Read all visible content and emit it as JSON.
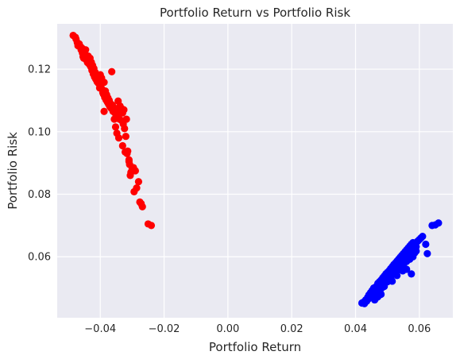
{
  "chart_data": {
    "type": "scatter",
    "title": "Portfolio Return vs Portfolio Risk",
    "xlabel": "Portfolio Return",
    "ylabel": "Portfolio Risk",
    "xlim": [
      -0.0535,
      0.0705
    ],
    "ylim": [
      0.0405,
      0.1345
    ],
    "xticks": [
      -0.04,
      -0.02,
      0.0,
      0.02,
      0.04,
      0.06
    ],
    "xtick_labels": [
      "−0.04",
      "−0.02",
      "0.00",
      "0.02",
      "0.04",
      "0.06"
    ],
    "yticks": [
      0.06,
      0.08,
      0.1,
      0.12
    ],
    "ytick_labels": [
      "0.06",
      "0.08",
      "0.10",
      "0.12"
    ],
    "grid": true,
    "background": "#eaeaf2",
    "grid_color": "#ffffff",
    "series": [
      {
        "color": "#ff0000",
        "points": [
          [
            -0.0485,
            0.1308
          ],
          [
            -0.0478,
            0.1302
          ],
          [
            -0.0476,
            0.1296
          ],
          [
            -0.0472,
            0.1285
          ],
          [
            -0.047,
            0.1275
          ],
          [
            -0.0466,
            0.1281
          ],
          [
            -0.0462,
            0.1272
          ],
          [
            -0.046,
            0.1262
          ],
          [
            -0.0458,
            0.1268
          ],
          [
            -0.0456,
            0.1252
          ],
          [
            -0.0454,
            0.124
          ],
          [
            -0.0452,
            0.1235
          ],
          [
            -0.045,
            0.1258
          ],
          [
            -0.0448,
            0.1245
          ],
          [
            -0.0446,
            0.1262
          ],
          [
            -0.0444,
            0.123
          ],
          [
            -0.0442,
            0.1238
          ],
          [
            -0.044,
            0.1221
          ],
          [
            -0.0438,
            0.1242
          ],
          [
            -0.0436,
            0.1228
          ],
          [
            -0.0434,
            0.1215
          ],
          [
            -0.0432,
            0.1235
          ],
          [
            -0.043,
            0.1208
          ],
          [
            -0.0428,
            0.1222
          ],
          [
            -0.0426,
            0.1196
          ],
          [
            -0.0424,
            0.1212
          ],
          [
            -0.0422,
            0.1185
          ],
          [
            -0.042,
            0.1202
          ],
          [
            -0.0418,
            0.1175
          ],
          [
            -0.0416,
            0.119
          ],
          [
            -0.0414,
            0.1168
          ],
          [
            -0.0412,
            0.1182
          ],
          [
            -0.041,
            0.116
          ],
          [
            -0.0408,
            0.1175
          ],
          [
            -0.0406,
            0.1155
          ],
          [
            -0.0404,
            0.116
          ],
          [
            -0.0402,
            0.114
          ],
          [
            -0.04,
            0.1182
          ],
          [
            -0.0398,
            0.1148
          ],
          [
            -0.0396,
            0.1172
          ],
          [
            -0.0394,
            0.1135
          ],
          [
            -0.0392,
            0.1125
          ],
          [
            -0.039,
            0.112
          ],
          [
            -0.0388,
            0.1158
          ],
          [
            -0.0386,
            0.111
          ],
          [
            -0.0384,
            0.113
          ],
          [
            -0.0382,
            0.1102
          ],
          [
            -0.038,
            0.1118
          ],
          [
            -0.0378,
            0.1095
          ],
          [
            -0.0376,
            0.1108
          ],
          [
            -0.0374,
            0.1088
          ],
          [
            -0.0372,
            0.11
          ],
          [
            -0.037,
            0.108
          ],
          [
            -0.0368,
            0.109
          ],
          [
            -0.0366,
            0.1075
          ],
          [
            -0.0364,
            0.1192
          ],
          [
            -0.0362,
            0.1085
          ],
          [
            -0.036,
            0.1065
          ],
          [
            -0.0358,
            0.1078
          ],
          [
            -0.0356,
            0.104
          ],
          [
            -0.0354,
            0.106
          ],
          [
            -0.0352,
            0.1015
          ],
          [
            -0.035,
            0.105
          ],
          [
            -0.0348,
            0.0995
          ],
          [
            -0.0346,
            0.107
          ],
          [
            -0.0344,
            0.1098
          ],
          [
            -0.0342,
            0.1055
          ],
          [
            -0.034,
            0.104
          ],
          [
            -0.0338,
            0.1082
          ],
          [
            -0.0336,
            0.1068
          ],
          [
            -0.0334,
            0.1075
          ],
          [
            -0.0332,
            0.1035
          ],
          [
            -0.033,
            0.106
          ],
          [
            -0.0328,
            0.1025
          ],
          [
            -0.0326,
            0.107
          ],
          [
            -0.0324,
            0.101
          ],
          [
            -0.0322,
            0.0935
          ],
          [
            -0.032,
            0.0985
          ],
          [
            -0.0318,
            0.104
          ],
          [
            -0.0316,
            0.093
          ],
          [
            -0.0314,
            0.0938
          ],
          [
            -0.031,
            0.0905
          ],
          [
            -0.0308,
            0.0895
          ],
          [
            -0.0306,
            0.086
          ],
          [
            -0.0304,
            0.087
          ],
          [
            -0.03,
            0.088
          ],
          [
            -0.0296,
            0.0885
          ],
          [
            -0.0294,
            0.0808
          ],
          [
            -0.029,
            0.0875
          ],
          [
            -0.0286,
            0.082
          ],
          [
            -0.028,
            0.084
          ],
          [
            -0.0276,
            0.0775
          ],
          [
            -0.0272,
            0.077
          ],
          [
            -0.0268,
            0.076
          ],
          [
            -0.025,
            0.0705
          ],
          [
            -0.024,
            0.07
          ],
          [
            -0.031,
            0.091
          ],
          [
            -0.0342,
            0.098
          ],
          [
            -0.033,
            0.0955
          ],
          [
            -0.0388,
            0.1065
          ]
        ]
      },
      {
        "color": "#0000ff",
        "points": [
          [
            0.042,
            0.0452
          ],
          [
            0.0425,
            0.0455
          ],
          [
            0.0428,
            0.045
          ],
          [
            0.0432,
            0.0462
          ],
          [
            0.0435,
            0.0458
          ],
          [
            0.0438,
            0.047
          ],
          [
            0.044,
            0.0465
          ],
          [
            0.0442,
            0.0478
          ],
          [
            0.0445,
            0.0472
          ],
          [
            0.0447,
            0.0485
          ],
          [
            0.045,
            0.048
          ],
          [
            0.0452,
            0.0492
          ],
          [
            0.0455,
            0.0488
          ],
          [
            0.0457,
            0.05
          ],
          [
            0.046,
            0.0495
          ],
          [
            0.0462,
            0.0478
          ],
          [
            0.0465,
            0.0505
          ],
          [
            0.0467,
            0.047
          ],
          [
            0.047,
            0.0515
          ],
          [
            0.0472,
            0.049
          ],
          [
            0.0475,
            0.052
          ],
          [
            0.0477,
            0.0485
          ],
          [
            0.048,
            0.0525
          ],
          [
            0.0482,
            0.05
          ],
          [
            0.0485,
            0.0532
          ],
          [
            0.0487,
            0.051
          ],
          [
            0.049,
            0.0538
          ],
          [
            0.0492,
            0.0515
          ],
          [
            0.0495,
            0.0545
          ],
          [
            0.0497,
            0.0528
          ],
          [
            0.05,
            0.055
          ],
          [
            0.0502,
            0.0535
          ],
          [
            0.0505,
            0.0555
          ],
          [
            0.0507,
            0.054
          ],
          [
            0.051,
            0.0562
          ],
          [
            0.0512,
            0.0548
          ],
          [
            0.0515,
            0.0568
          ],
          [
            0.0517,
            0.0552
          ],
          [
            0.052,
            0.0575
          ],
          [
            0.0522,
            0.0558
          ],
          [
            0.0525,
            0.058
          ],
          [
            0.0527,
            0.0565
          ],
          [
            0.053,
            0.0586
          ],
          [
            0.0532,
            0.057
          ],
          [
            0.0535,
            0.0592
          ],
          [
            0.0537,
            0.0578
          ],
          [
            0.054,
            0.0598
          ],
          [
            0.0542,
            0.0582
          ],
          [
            0.0545,
            0.0604
          ],
          [
            0.0547,
            0.059
          ],
          [
            0.055,
            0.061
          ],
          [
            0.0552,
            0.0595
          ],
          [
            0.0555,
            0.0616
          ],
          [
            0.0557,
            0.06
          ],
          [
            0.056,
            0.0622
          ],
          [
            0.0562,
            0.0605
          ],
          [
            0.0565,
            0.0628
          ],
          [
            0.0567,
            0.061
          ],
          [
            0.057,
            0.0634
          ],
          [
            0.0572,
            0.0615
          ],
          [
            0.0575,
            0.064
          ],
          [
            0.0577,
            0.0622
          ],
          [
            0.058,
            0.0645
          ],
          [
            0.0582,
            0.0628
          ],
          [
            0.0585,
            0.063
          ],
          [
            0.059,
            0.0618
          ],
          [
            0.0595,
            0.065
          ],
          [
            0.06,
            0.0655
          ],
          [
            0.0605,
            0.066
          ],
          [
            0.061,
            0.0665
          ],
          [
            0.062,
            0.064
          ],
          [
            0.0625,
            0.061
          ],
          [
            0.064,
            0.07
          ],
          [
            0.065,
            0.0702
          ],
          [
            0.066,
            0.0708
          ],
          [
            0.046,
            0.0462
          ],
          [
            0.047,
            0.0472
          ],
          [
            0.048,
            0.048
          ],
          [
            0.049,
            0.0505
          ],
          [
            0.05,
            0.052
          ],
          [
            0.051,
            0.053
          ],
          [
            0.052,
            0.0545
          ],
          [
            0.053,
            0.0555
          ],
          [
            0.054,
            0.0565
          ],
          [
            0.055,
            0.0575
          ],
          [
            0.056,
            0.0585
          ],
          [
            0.057,
            0.0592
          ],
          [
            0.058,
            0.06
          ],
          [
            0.0585,
            0.0612
          ],
          [
            0.059,
            0.0632
          ],
          [
            0.0575,
            0.0545
          ],
          [
            0.056,
            0.056
          ],
          [
            0.0548,
            0.0555
          ],
          [
            0.053,
            0.054
          ],
          [
            0.0515,
            0.0522
          ]
        ]
      }
    ]
  }
}
